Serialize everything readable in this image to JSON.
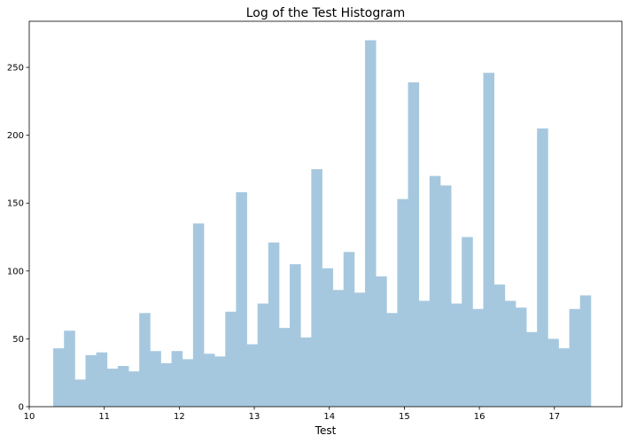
{
  "chart_data": {
    "type": "bar",
    "title": "Log of the Test Histogram",
    "xlabel": "Test",
    "ylabel": "",
    "xlim": [
      10.0,
      17.9
    ],
    "ylim": [
      0,
      284
    ],
    "xticks": [
      10,
      11,
      12,
      13,
      14,
      15,
      16,
      17
    ],
    "yticks": [
      0,
      50,
      100,
      150,
      200,
      250
    ],
    "grid": false,
    "bin_start": 10.32,
    "bin_width": 0.1433,
    "bar_color": "#a6c8df",
    "values": [
      43,
      56,
      20,
      38,
      40,
      28,
      30,
      26,
      69,
      41,
      32,
      41,
      35,
      135,
      39,
      37,
      70,
      158,
      46,
      76,
      121,
      58,
      105,
      51,
      175,
      102,
      86,
      114,
      84,
      270,
      96,
      69,
      153,
      239,
      78,
      170,
      163,
      76,
      125,
      72,
      246,
      90,
      78,
      73,
      55,
      205,
      50,
      43,
      72,
      82
    ]
  }
}
